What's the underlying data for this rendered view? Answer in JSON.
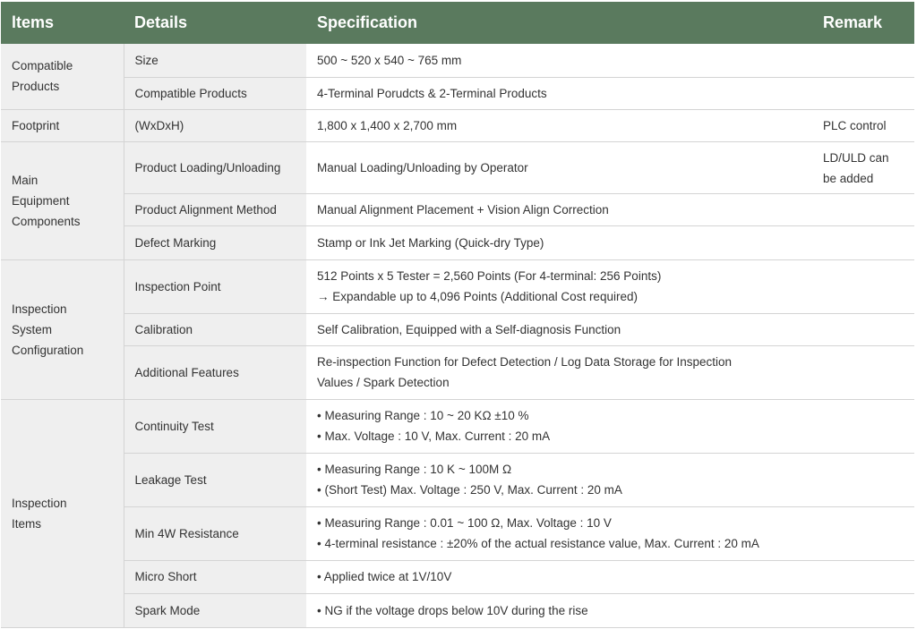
{
  "header": {
    "items": "ltems",
    "details": "Details",
    "specification": "Specification",
    "remark": "Remark"
  },
  "colors": {
    "header_bg": "#5a7a5e",
    "label_bg": "#efefef"
  },
  "groups": [
    {
      "label": "Compatible Products",
      "rows": [
        {
          "detail": "Size",
          "spec": [
            "500 ~ 520 x 540 ~ 765 mm"
          ],
          "remark": "",
          "h": 37
        },
        {
          "detail": "Compatible Products",
          "spec": [
            "4-Terminal Porudcts & 2-Terminal Products"
          ],
          "remark": "",
          "h": 36
        }
      ]
    },
    {
      "label": "Footprint",
      "rows": [
        {
          "detail": "(WxDxH)",
          "spec": [
            "1,800 x 1,400 x 2,700 mm"
          ],
          "remark": "PLC control",
          "h": 36
        }
      ]
    },
    {
      "label": "Main Equipment Components",
      "rows": [
        {
          "detail": "Product Loading/Unloading",
          "spec": [
            "Manual Loading/Unloading by Operator"
          ],
          "remark": "LD/ULD can be added",
          "h": 58
        },
        {
          "detail": "Product Alignment Method",
          "spec": [
            "Manual Alignment Placement + Vision Align Correction"
          ],
          "remark": "",
          "h": 36
        },
        {
          "detail": "Defect Marking",
          "spec": [
            "Stamp or Ink Jet Marking (Quick-dry Type)"
          ],
          "remark": "",
          "h": 38
        }
      ]
    },
    {
      "label": "Inspection System Configuration",
      "rows": [
        {
          "detail": "Inspection Point",
          "spec": [
            "512 Points x 5 Tester = 2,560 Points (For 4-terminal: 256 Points)",
            "→ Expandable up to 4,096 Points (Additional Cost required)"
          ],
          "remark": "",
          "h": 60
        },
        {
          "detail": "Calibration",
          "spec": [
            "Self Calibration, Equipped with a Self-diagnosis Function"
          ],
          "remark": "",
          "h": 36
        },
        {
          "detail": "Additional Features",
          "spec": [
            "Re-inspection Function for Defect Detection / Log Data Storage for Inspection",
            "Values / Spark Detection"
          ],
          "remark": "",
          "h": 60
        }
      ]
    },
    {
      "label": "Inspection Items",
      "rows": [
        {
          "detail": "Continuity Test",
          "spec": [
            "• Measuring Range : 10 ~ 20 KΩ ±10 %",
            "• Max. Voltage : 10 V, Max. Current : 20 mA"
          ],
          "remark": "",
          "h": 60
        },
        {
          "detail": "Leakage Test",
          "spec": [
            "• Measuring Range : 10 K ~ 100M Ω",
            "• (Short Test) Max. Voltage : 250 V, Max. Current : 20 mA"
          ],
          "remark": "",
          "h": 60
        },
        {
          "detail": "Min 4W Resistance",
          "spec": [
            "• Measuring Range : 0.01 ~ 100 Ω, Max. Voltage : 10 V",
            "• 4-terminal resistance : ±20% of the actual resistance value, Max. Current : 20 mA"
          ],
          "remark": "",
          "h": 60
        },
        {
          "detail": "Micro Short",
          "spec": [
            "• Applied twice at 1V/10V"
          ],
          "remark": "",
          "h": 37
        },
        {
          "detail": "Spark Mode",
          "spec": [
            "• NG if the voltage drops below 10V during the rise"
          ],
          "remark": "",
          "h": 38
        }
      ]
    }
  ]
}
